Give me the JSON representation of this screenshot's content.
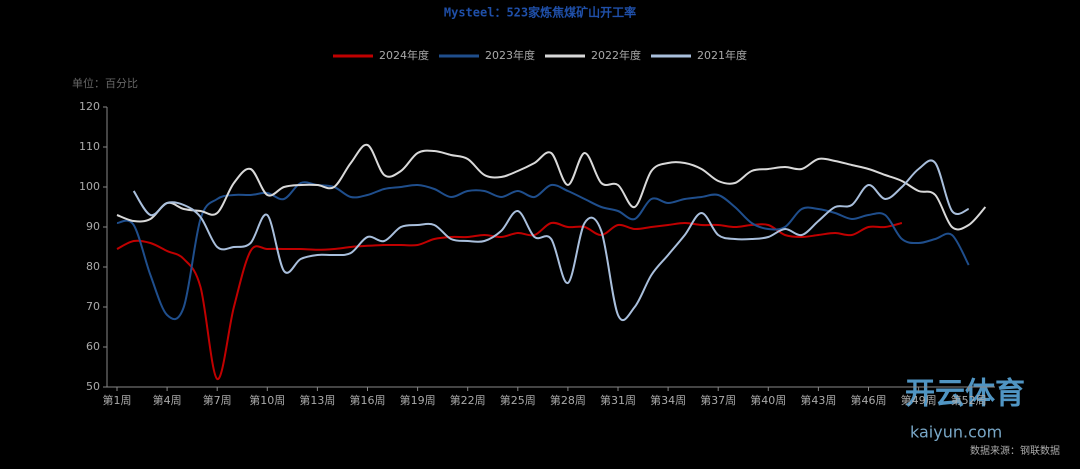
{
  "chart_data": {
    "type": "line",
    "title": "Mysteel：523家炼焦煤矿山开工率",
    "y_unit": "单位：百分比",
    "source": "数据来源：钢联数据",
    "watermark": "开云体育",
    "watermark_sub": "kaiyun.com",
    "categories": [
      "第1周",
      null,
      null,
      "第4周",
      null,
      null,
      "第7周",
      null,
      null,
      "第10周",
      null,
      null,
      "第13周",
      null,
      null,
      "第16周",
      null,
      null,
      "第19周",
      null,
      null,
      "第22周",
      null,
      null,
      "第25周",
      null,
      null,
      "第28周",
      null,
      null,
      "第31周",
      null,
      null,
      "第34周",
      null,
      null,
      "第37周",
      null,
      null,
      "第40周",
      null,
      null,
      "第43周",
      null,
      null,
      "第46周",
      null,
      null,
      "第49周",
      null,
      null,
      "第52周",
      null
    ],
    "ylim": [
      50,
      120
    ],
    "yticks": [
      50,
      60,
      70,
      80,
      90,
      100,
      110,
      120
    ],
    "grid": false,
    "legend": "top",
    "series": [
      {
        "name": "2024年度",
        "color": "#c00000",
        "values": [
          84.5,
          86.5,
          86,
          84,
          82,
          75,
          52,
          70,
          84,
          84.5,
          84.5,
          84.5,
          84.3,
          84.5,
          85,
          85.3,
          85.5,
          85.5,
          85.5,
          87,
          87.5,
          87.5,
          88,
          87.5,
          88.5,
          88,
          91,
          90,
          90,
          88,
          90.5,
          89.5,
          90,
          90.5,
          91,
          90.5,
          90.5,
          90,
          90.5,
          90.5,
          88,
          87.5,
          88,
          88.5,
          88,
          90,
          90,
          91,
          null,
          null,
          null,
          null,
          null
        ]
      },
      {
        "name": "2023年度",
        "color": "#1f4e8c",
        "values": [
          91,
          90.5,
          78,
          68,
          70,
          92,
          97,
          98,
          98,
          98.5,
          97,
          101,
          100.5,
          100,
          97.5,
          98,
          99.5,
          100,
          100.5,
          99.5,
          97.5,
          99,
          99,
          97.5,
          99,
          97.5,
          100.5,
          99,
          97,
          95,
          94,
          92,
          97,
          96,
          97,
          97.5,
          98,
          95,
          91,
          89.5,
          90,
          94.5,
          94.5,
          93.5,
          92,
          93,
          93,
          87,
          86,
          87,
          88,
          80.5,
          null
        ]
      },
      {
        "name": "2022年度",
        "color": "#d9d9d9",
        "values": [
          93,
          91.5,
          92,
          96,
          94.5,
          94,
          93.5,
          101,
          104.5,
          98,
          100,
          100.5,
          100.5,
          100,
          106,
          110.5,
          103,
          104,
          108.5,
          109,
          108,
          107,
          103,
          102.5,
          104,
          106,
          108.5,
          100.5,
          108.5,
          101,
          100.5,
          95,
          104,
          106,
          106,
          104.5,
          101.5,
          101,
          104,
          104.5,
          105,
          104.5,
          107,
          106.5,
          105.5,
          104.5,
          103,
          101.5,
          99,
          98,
          90,
          90.5,
          95
        ]
      },
      {
        "name": "2021年度",
        "color": "#a9bfdc",
        "values": [
          null,
          99,
          93,
          96,
          95.5,
          92.5,
          85,
          85,
          86,
          93,
          79,
          82,
          83,
          83,
          83.5,
          87.5,
          86.5,
          90,
          90.5,
          90.5,
          87,
          86.5,
          86.5,
          89,
          94,
          87.5,
          87,
          76,
          91,
          89,
          68,
          70,
          78,
          83,
          88,
          93.5,
          88,
          87,
          87,
          87.5,
          89.5,
          88,
          91.5,
          95,
          95.5,
          100.5,
          97,
          100,
          104.5,
          106,
          94,
          94.5,
          null
        ]
      }
    ]
  }
}
